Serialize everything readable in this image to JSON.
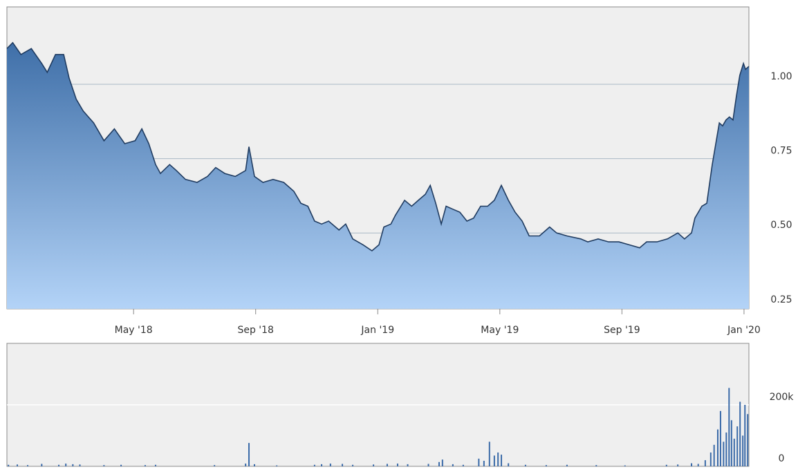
{
  "chart_data": [
    {
      "type": "area",
      "color": "#1f3b60",
      "x": [
        -0.15,
        0.04,
        0.31,
        0.65,
        0.99,
        1.17,
        1.44,
        1.71,
        1.89,
        2.12,
        2.35,
        2.69,
        3.03,
        3.37,
        3.71,
        4.05,
        4.27,
        4.5,
        4.72,
        4.88,
        5.18,
        5.4,
        5.7,
        6.08,
        6.42,
        6.69,
        6.99,
        7.33,
        7.67,
        7.78,
        7.96,
        8.24,
        8.57,
        8.92,
        9.25,
        9.48,
        9.71,
        9.93,
        10.16,
        10.39,
        10.73,
        10.95,
        11.18,
        11.52,
        11.81,
        12.04,
        12.2,
        12.43,
        12.58,
        12.88,
        13.11,
        13.33,
        13.56,
        13.72,
        13.9,
        14.08,
        14.24,
        14.46,
        14.69,
        14.92,
        15.14,
        15.37,
        15.6,
        15.82,
        16.05,
        16.28,
        16.5,
        16.73,
        16.96,
        17.3,
        17.63,
        17.86,
        18.2,
        18.65,
        18.88,
        19.22,
        19.56,
        19.9,
        20.24,
        20.58,
        20.81,
        21.15,
        21.49,
        21.83,
        22.05,
        22.28,
        22.39,
        22.62,
        22.78,
        22.96,
        23.19,
        23.3,
        23.41,
        23.52,
        23.64,
        23.75,
        23.86,
        23.98,
        24.05,
        24.16
      ],
      "values": [
        1.12,
        1.14,
        1.1,
        1.12,
        1.07,
        1.04,
        1.1,
        1.1,
        1.02,
        0.95,
        0.91,
        0.87,
        0.81,
        0.85,
        0.8,
        0.81,
        0.85,
        0.8,
        0.73,
        0.7,
        0.73,
        0.71,
        0.68,
        0.67,
        0.69,
        0.72,
        0.7,
        0.69,
        0.71,
        0.79,
        0.69,
        0.67,
        0.68,
        0.67,
        0.64,
        0.6,
        0.59,
        0.54,
        0.53,
        0.54,
        0.51,
        0.53,
        0.48,
        0.46,
        0.44,
        0.46,
        0.52,
        0.53,
        0.56,
        0.61,
        0.59,
        0.61,
        0.63,
        0.66,
        0.6,
        0.53,
        0.59,
        0.58,
        0.57,
        0.54,
        0.55,
        0.59,
        0.59,
        0.61,
        0.66,
        0.61,
        0.57,
        0.54,
        0.49,
        0.49,
        0.52,
        0.5,
        0.49,
        0.48,
        0.47,
        0.48,
        0.47,
        0.47,
        0.46,
        0.45,
        0.47,
        0.47,
        0.48,
        0.5,
        0.48,
        0.5,
        0.55,
        0.59,
        0.6,
        0.73,
        0.87,
        0.86,
        0.88,
        0.89,
        0.88,
        0.96,
        1.03,
        1.07,
        1.05,
        1.06
      ],
      "xlim": [
        -0.15,
        24.16
      ],
      "xticks": [
        {
          "value": 4,
          "label": "May '18"
        },
        {
          "value": 8,
          "label": "Sep '18"
        },
        {
          "value": 12,
          "label": "Jan '19"
        },
        {
          "value": 16,
          "label": "May '19"
        },
        {
          "value": 20,
          "label": "Sep '19"
        },
        {
          "value": 24,
          "label": "Jan '20"
        }
      ],
      "ylim": [
        0.245,
        1.26
      ],
      "yticks": [
        {
          "value": 0.25,
          "label": "0.25"
        },
        {
          "value": 0.5,
          "label": "0.50"
        },
        {
          "value": 0.75,
          "label": "0.75"
        },
        {
          "value": 1,
          "label": "1.00"
        }
      ],
      "grid": true
    },
    {
      "type": "bar",
      "color": "#3a6aa8",
      "x": [
        -0.1,
        0.19,
        0.53,
        0.99,
        1.55,
        1.78,
        2.01,
        2.24,
        3.03,
        3.59,
        4.38,
        4.72,
        6.65,
        7.67,
        7.78,
        7.96,
        8.69,
        9.93,
        10.16,
        10.45,
        10.84,
        11.18,
        11.86,
        12.31,
        12.65,
        12.98,
        13.66,
        14.01,
        14.12,
        14.46,
        14.8,
        15.31,
        15.48,
        15.66,
        15.82,
        15.94,
        16.05,
        16.28,
        16.84,
        17.52,
        18.2,
        19.16,
        20.1,
        21.46,
        21.83,
        22.28,
        22.5,
        22.73,
        22.91,
        23.02,
        23.14,
        23.23,
        23.33,
        23.42,
        23.51,
        23.59,
        23.68,
        23.78,
        23.87,
        23.96,
        24.03,
        24.12
      ],
      "values": [
        5000,
        6000,
        4000,
        8000,
        5000,
        9000,
        7000,
        6000,
        4000,
        5000,
        4000,
        5000,
        4000,
        9000,
        76000,
        7000,
        3000,
        5000,
        7000,
        9000,
        8000,
        5000,
        6000,
        8000,
        9000,
        7000,
        8000,
        14000,
        22000,
        7000,
        5000,
        25000,
        18000,
        80000,
        35000,
        45000,
        38000,
        10000,
        5000,
        4000,
        5000,
        4000,
        3000,
        5000,
        6000,
        10000,
        8000,
        20000,
        45000,
        70000,
        120000,
        180000,
        80000,
        110000,
        255000,
        150000,
        90000,
        130000,
        210000,
        100000,
        200000,
        170000
      ],
      "xlim": [
        -0.15,
        24.16
      ],
      "ylim": [
        0,
        400000
      ],
      "yticks": [
        0,
        {
          "value": 200000,
          "label": "200k"
        }
      ],
      "grid": true
    }
  ]
}
